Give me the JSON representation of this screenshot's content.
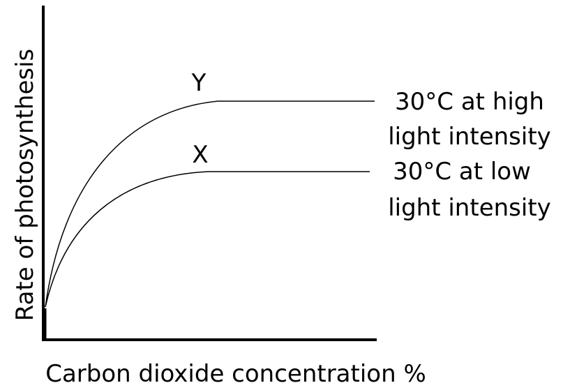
{
  "axes": {
    "y_label": "Rate of photosynthesis",
    "x_label": "Carbon dioxide concentration %"
  },
  "curves": [
    {
      "marker": "Y",
      "label_lines": [
        "30°C at high",
        "light intensity"
      ]
    },
    {
      "marker": "X",
      "label_lines": [
        "30°C at low",
        "light intensity"
      ]
    }
  ]
}
